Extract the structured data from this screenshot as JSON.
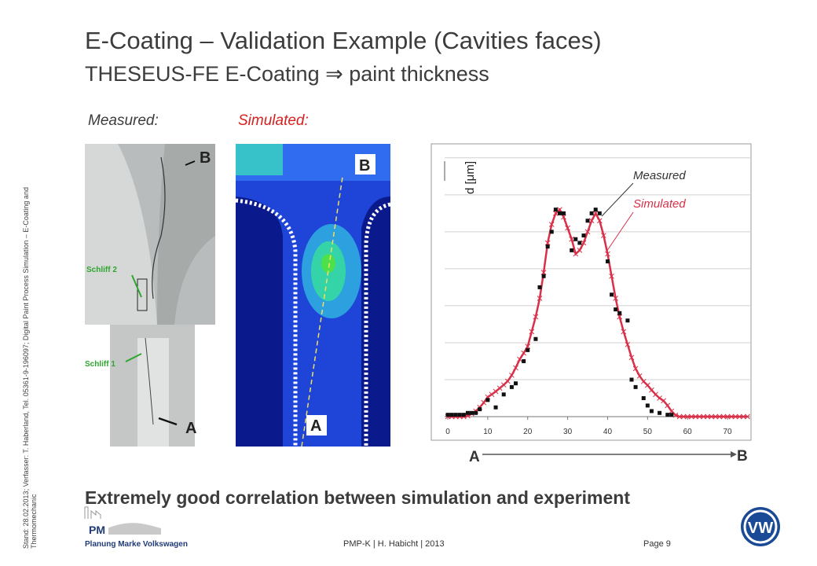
{
  "header": {
    "title": "E-Coating – Validation Example (Cavities faces)",
    "subtitle": "THESEUS-FE E-Coating  ⇒ paint thickness"
  },
  "labels": {
    "measured": "Measured:",
    "simulated": "Simulated:"
  },
  "photo": {
    "top_marker": "B",
    "bottom_marker": "A",
    "cut_2": "Schliff 2",
    "cut_1": "Schliff 1"
  },
  "simulation": {
    "top_marker": "B",
    "bottom_marker": "A"
  },
  "chart_data": {
    "type": "scatter",
    "y_label": "d [μm]",
    "x": [
      0,
      1,
      2,
      3,
      4,
      5,
      6,
      7,
      8,
      9,
      10,
      11,
      12,
      13,
      14,
      15,
      16,
      17,
      18,
      19,
      20,
      21,
      22,
      23,
      24,
      25,
      26,
      27,
      28,
      29,
      30,
      31,
      32,
      33,
      34,
      35,
      36,
      37,
      38,
      39,
      40,
      41,
      42,
      43,
      44,
      45,
      46,
      47,
      48,
      49,
      50,
      51,
      52,
      53,
      54,
      55,
      56,
      57,
      58,
      59,
      60,
      61,
      62,
      63,
      64,
      65,
      66,
      67,
      68,
      69,
      70,
      71,
      72,
      73,
      74,
      75
    ],
    "series": [
      {
        "name": "Measured",
        "color": "#111111",
        "x": [
          0,
          1,
          2,
          3,
          4,
          5,
          6,
          7,
          8,
          10,
          12,
          14,
          16,
          17,
          19,
          20,
          22,
          23,
          24,
          25,
          26,
          27,
          28,
          29,
          31,
          32,
          33,
          34,
          35,
          36,
          37,
          38,
          40,
          41,
          42,
          43,
          45,
          46,
          47,
          49,
          50,
          51,
          53,
          55,
          56
        ],
        "values": [
          0.05,
          0.05,
          0.05,
          0.05,
          0.05,
          0.1,
          0.1,
          0.1,
          0.2,
          0.45,
          0.25,
          0.6,
          0.8,
          0.9,
          1.5,
          1.8,
          2.1,
          3.5,
          3.8,
          4.6,
          5.0,
          5.6,
          5.5,
          5.5,
          4.5,
          4.8,
          4.7,
          4.9,
          5.3,
          5.5,
          5.6,
          5.5,
          4.2,
          3.3,
          2.9,
          2.8,
          2.6,
          1.0,
          0.8,
          0.5,
          0.3,
          0.15,
          0.1,
          0.05,
          0.05
        ]
      },
      {
        "name": "Simulated",
        "color": "#d9304a",
        "values": [
          0,
          0,
          0,
          0,
          0,
          0.02,
          0.08,
          0.15,
          0.25,
          0.38,
          0.53,
          0.6,
          0.68,
          0.77,
          0.86,
          0.96,
          1.12,
          1.32,
          1.55,
          1.72,
          1.9,
          2.3,
          2.7,
          3.2,
          3.9,
          4.7,
          5.2,
          5.5,
          5.6,
          5.4,
          5.1,
          4.8,
          4.4,
          4.5,
          4.7,
          5.0,
          5.3,
          5.5,
          5.3,
          4.9,
          4.4,
          3.8,
          3.2,
          2.7,
          2.3,
          1.95,
          1.6,
          1.3,
          1.1,
          0.95,
          0.85,
          0.72,
          0.6,
          0.5,
          0.43,
          0.3,
          0.15,
          0.04,
          0,
          0,
          0,
          0,
          0,
          0,
          0,
          0,
          0,
          0,
          0,
          0,
          0,
          0,
          0,
          0,
          0,
          0
        ]
      }
    ],
    "xlim": [
      0,
      75
    ],
    "xticks": [
      0,
      10,
      20,
      30,
      40,
      50,
      60,
      70
    ],
    "ylim": [
      0,
      7.4
    ],
    "ygrid": [
      0,
      1,
      2,
      3,
      4,
      5,
      6,
      7
    ],
    "grid": true,
    "start_label": "A",
    "end_label": "B"
  },
  "conclusion": "Extremely good correlation between simulation and experiment",
  "sidebar": [
    "Stand: 28.02.2013; Verfasser: T. Haberland, Tel. 05361-9-196097; Digital Paint Process Simulation – E-Coating and",
    "Thermomechanic"
  ],
  "footer": {
    "logo_short": "PM",
    "logo_text": "Planung Marke Volkswagen",
    "center": "PMP-K | H. Habicht | 2013",
    "page": "Page 9",
    "brand": "VW"
  }
}
